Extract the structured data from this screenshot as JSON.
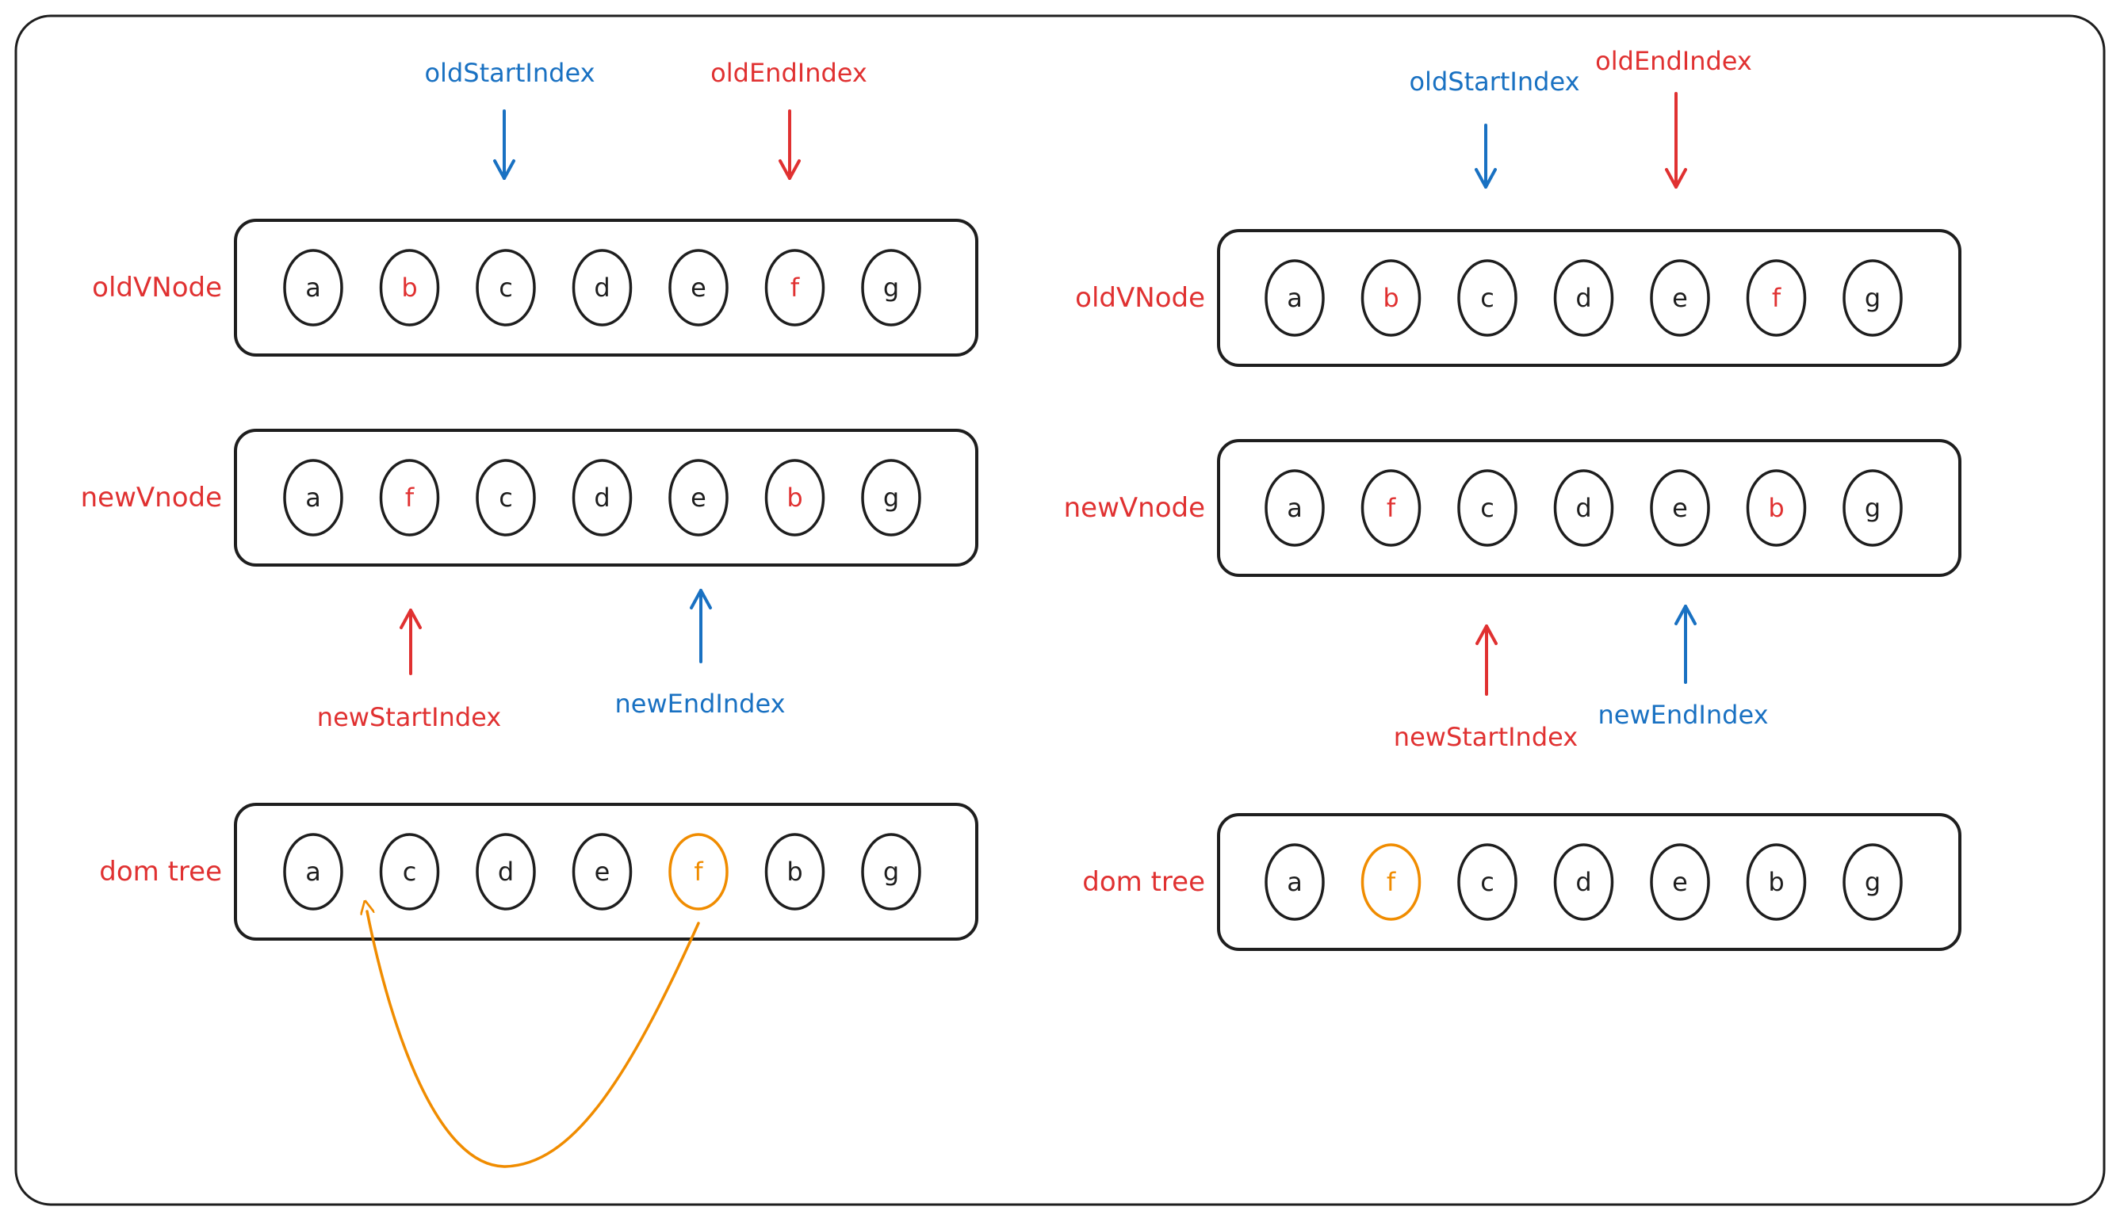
{
  "colors": {
    "ink": "#1e1e1e",
    "red": "#e03131",
    "blue": "#1971c2",
    "orange": "#f08c00",
    "background": "#ffffff"
  },
  "panels": [
    {
      "id": "left",
      "rows": [
        {
          "id": "old",
          "label": "oldVNode",
          "nodes": [
            {
              "letter": "a",
              "color": "ink"
            },
            {
              "letter": "b",
              "color": "red"
            },
            {
              "letter": "c",
              "color": "ink"
            },
            {
              "letter": "d",
              "color": "ink"
            },
            {
              "letter": "e",
              "color": "ink"
            },
            {
              "letter": "f",
              "color": "red"
            },
            {
              "letter": "g",
              "color": "ink"
            }
          ]
        },
        {
          "id": "new",
          "label": "newVnode",
          "nodes": [
            {
              "letter": "a",
              "color": "ink"
            },
            {
              "letter": "f",
              "color": "red"
            },
            {
              "letter": "c",
              "color": "ink"
            },
            {
              "letter": "d",
              "color": "ink"
            },
            {
              "letter": "e",
              "color": "ink"
            },
            {
              "letter": "b",
              "color": "red"
            },
            {
              "letter": "g",
              "color": "ink"
            }
          ]
        },
        {
          "id": "dom",
          "label": "dom tree",
          "nodes": [
            {
              "letter": "a",
              "color": "ink"
            },
            {
              "letter": "c",
              "color": "ink"
            },
            {
              "letter": "d",
              "color": "ink"
            },
            {
              "letter": "e",
              "color": "ink"
            },
            {
              "letter": "f",
              "color": "orange"
            },
            {
              "letter": "b",
              "color": "ink"
            },
            {
              "letter": "g",
              "color": "ink"
            }
          ]
        }
      ],
      "pointers": {
        "old_start": {
          "label": "oldStartIndex",
          "color": "blue",
          "node_index": 2
        },
        "old_end": {
          "label": "oldEndIndex",
          "color": "red",
          "node_index": 5
        },
        "new_start": {
          "label": "newStartIndex",
          "color": "red",
          "node_index": 1
        },
        "new_end": {
          "label": "newEndIndex",
          "color": "blue",
          "node_index": 4
        }
      },
      "move": {
        "from_index": 4,
        "to_index": 0,
        "color": "orange"
      }
    },
    {
      "id": "right",
      "rows": [
        {
          "id": "old",
          "label": "oldVNode",
          "nodes": [
            {
              "letter": "a",
              "color": "ink"
            },
            {
              "letter": "b",
              "color": "red"
            },
            {
              "letter": "c",
              "color": "ink"
            },
            {
              "letter": "d",
              "color": "ink"
            },
            {
              "letter": "e",
              "color": "ink"
            },
            {
              "letter": "f",
              "color": "red"
            },
            {
              "letter": "g",
              "color": "ink"
            }
          ]
        },
        {
          "id": "new",
          "label": "newVnode",
          "nodes": [
            {
              "letter": "a",
              "color": "ink"
            },
            {
              "letter": "f",
              "color": "red"
            },
            {
              "letter": "c",
              "color": "ink"
            },
            {
              "letter": "d",
              "color": "ink"
            },
            {
              "letter": "e",
              "color": "ink"
            },
            {
              "letter": "b",
              "color": "red"
            },
            {
              "letter": "g",
              "color": "ink"
            }
          ]
        },
        {
          "id": "dom",
          "label": "dom tree",
          "nodes": [
            {
              "letter": "a",
              "color": "ink"
            },
            {
              "letter": "f",
              "color": "orange"
            },
            {
              "letter": "c",
              "color": "ink"
            },
            {
              "letter": "d",
              "color": "ink"
            },
            {
              "letter": "e",
              "color": "ink"
            },
            {
              "letter": "b",
              "color": "ink"
            },
            {
              "letter": "g",
              "color": "ink"
            }
          ]
        }
      ],
      "pointers": {
        "old_start": {
          "label": "oldStartIndex",
          "color": "blue",
          "node_index": 2
        },
        "old_end": {
          "label": "oldEndIndex",
          "color": "red",
          "node_index": 4
        },
        "new_start": {
          "label": "newStartIndex",
          "color": "red",
          "node_index": 2
        },
        "new_end": {
          "label": "newEndIndex",
          "color": "blue",
          "node_index": 4
        }
      }
    }
  ]
}
